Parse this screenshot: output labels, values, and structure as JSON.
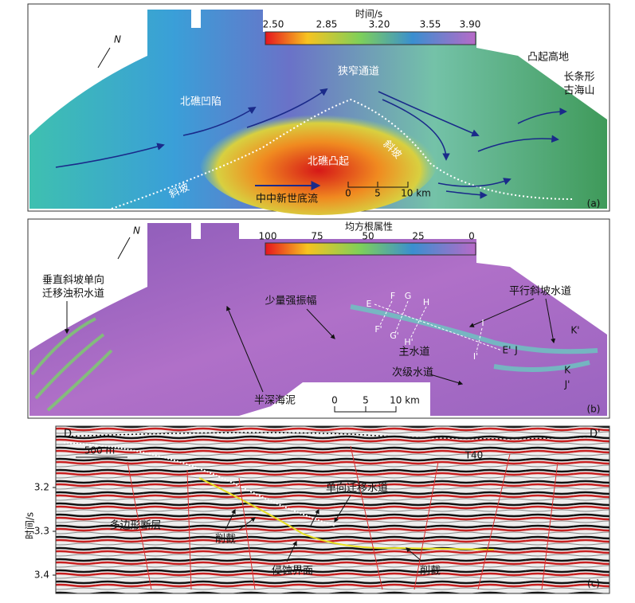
{
  "panel_a": {
    "label": "(a)",
    "north": "N",
    "colorbar": {
      "title": "时间/s",
      "ticks": [
        "2.50",
        "2.85",
        "3.20",
        "3.55",
        "3.90"
      ]
    },
    "annotations": [
      "北礁凹陷",
      "狭窄通道",
      "凸起高地",
      "长条形",
      "古海山",
      "斜坡",
      "斜坡",
      "北礁凸起"
    ],
    "legend": "中中新世底流",
    "scale": [
      "0",
      "5",
      "10 km"
    ]
  },
  "panel_b": {
    "label": "(b)",
    "north": "N",
    "colorbar": {
      "title": "均方根属性",
      "ticks": [
        "100",
        "75",
        "50",
        "25",
        "0"
      ]
    },
    "annotations": [
      "垂直斜坡单向",
      "迁移浊积水道",
      "少量强振幅",
      "平行斜坡水道",
      "主水道",
      "次级水道",
      "半深海泥"
    ],
    "section_labels": [
      "E",
      "F",
      "G",
      "H",
      "I",
      "F'",
      "G'",
      "H'",
      "I'",
      "E'",
      "J",
      "J'",
      "K",
      "K'"
    ],
    "scale": [
      "0",
      "5",
      "10 km"
    ]
  },
  "panel_c": {
    "label": "(c)",
    "ends": [
      "D",
      "D'"
    ],
    "scale": "500 m",
    "horizon": "T40",
    "annotations": [
      "单向迁移水道",
      "多边形断层",
      "削截",
      "削截",
      "侵蚀界面"
    ],
    "y_axis": {
      "label": "时间/s",
      "ticks": [
        "3.2",
        "3.3",
        "3.4"
      ]
    }
  }
}
